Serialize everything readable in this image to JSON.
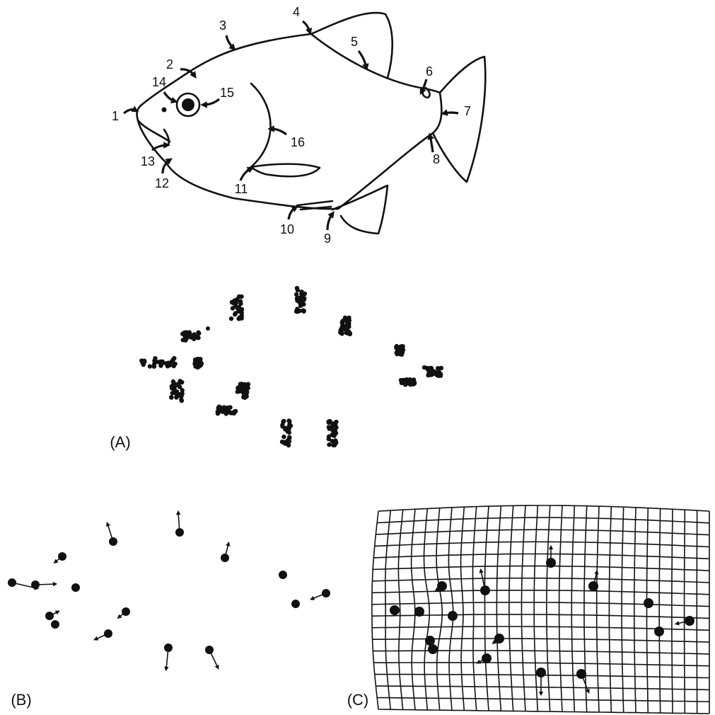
{
  "landmarks": [
    "1",
    "2",
    "3",
    "4",
    "5",
    "6",
    "7",
    "8",
    "9",
    "10",
    "11",
    "12",
    "13",
    "14",
    "15",
    "16"
  ],
  "panels": [
    "(A)",
    "(B)",
    "(C)"
  ]
}
